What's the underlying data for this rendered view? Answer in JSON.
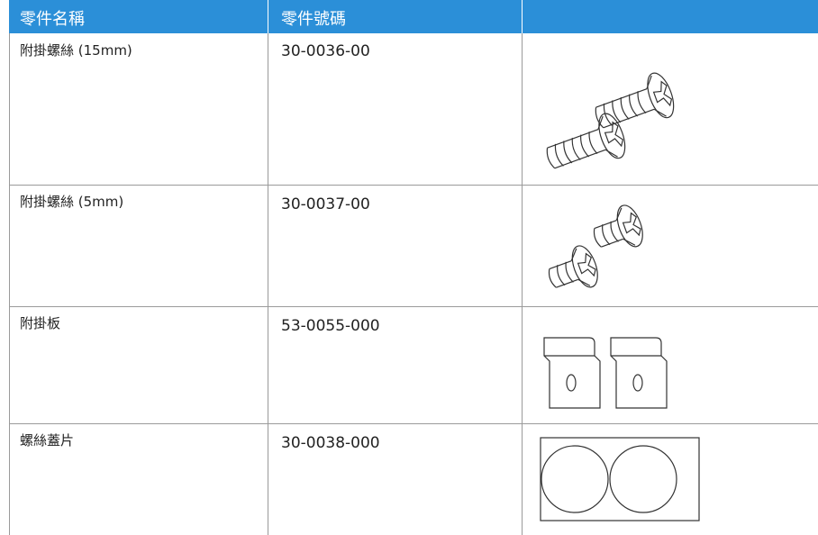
{
  "table": {
    "header": [
      "零件名稱",
      "零件號碼"
    ],
    "rows": [
      [
        "附掛螺絲 (15mm)",
        "30-0036-00"
      ],
      [
        "附掛螺絲 (5mm)",
        "30-0037-00"
      ],
      [
        "附掛板",
        "53-0055-000"
      ],
      [
        "螺絲蓋片",
        "30-0038-000"
      ]
    ]
  }
}
